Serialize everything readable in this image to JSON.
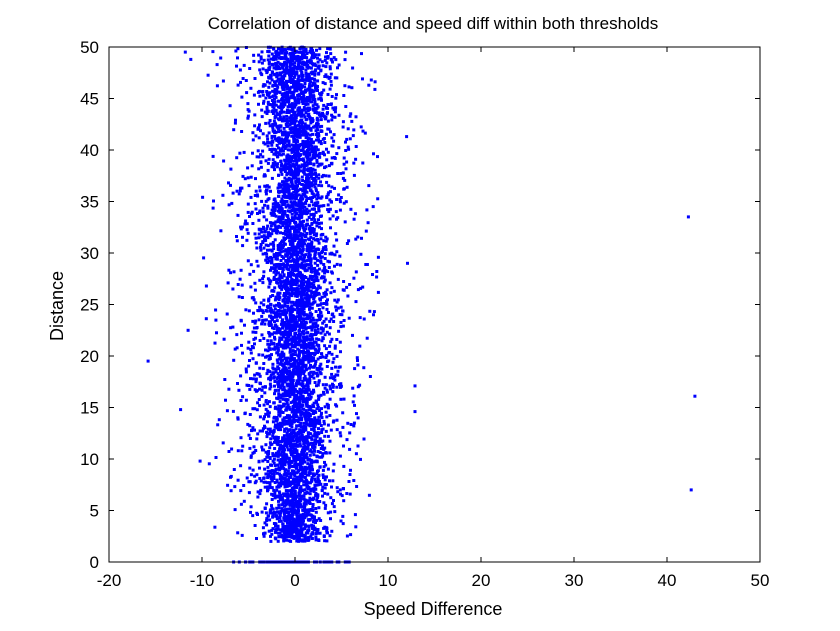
{
  "chart_data": {
    "type": "scatter",
    "title": "Correlation of distance and speed diff within both thresholds",
    "xlabel": "Speed Difference",
    "ylabel": "Distance",
    "xlim": [
      -20,
      50
    ],
    "ylim": [
      0,
      50
    ],
    "xticks": [
      -20,
      -10,
      0,
      10,
      20,
      30,
      40,
      50
    ],
    "yticks": [
      0,
      5,
      10,
      15,
      20,
      25,
      30,
      35,
      40,
      45,
      50
    ],
    "grid": false,
    "legend": "none",
    "marker_color": "#0000ff",
    "marker": "dot",
    "distribution": {
      "description_note": "dense vertical band of points centered near x=0",
      "point_count_estimate": 6000,
      "center_x": 0,
      "core_spread_x": 1.6,
      "outer_spread_x": 3.8,
      "y_range": [
        2,
        50
      ],
      "zero_row_x_range": [
        -7,
        6
      ]
    },
    "notable_points": [
      {
        "x": -15.8,
        "y": 19.5
      },
      {
        "x": -12.3,
        "y": 14.8
      },
      {
        "x": -11.5,
        "y": 22.5
      },
      {
        "x": -10.2,
        "y": 9.8
      },
      {
        "x": -11.8,
        "y": 49.5
      },
      {
        "x": -11.2,
        "y": 48.8
      },
      {
        "x": 8.2,
        "y": 46.8
      },
      {
        "x": 8.8,
        "y": 28.2
      },
      {
        "x": 12.0,
        "y": 41.3
      },
      {
        "x": 12.1,
        "y": 29.0
      },
      {
        "x": 12.9,
        "y": 17.1
      },
      {
        "x": 12.9,
        "y": 14.6
      },
      {
        "x": 6.5,
        "y": 4.6
      },
      {
        "x": 6.4,
        "y": 15.2
      },
      {
        "x": 42.3,
        "y": 33.5
      },
      {
        "x": 43.0,
        "y": 16.1
      },
      {
        "x": 42.6,
        "y": 7.0
      }
    ]
  }
}
